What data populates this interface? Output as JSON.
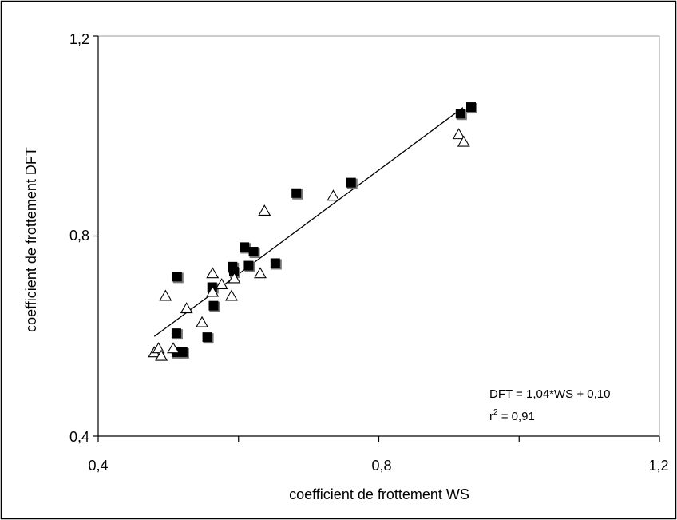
{
  "chart_data": {
    "type": "scatter",
    "title": "",
    "xlabel": "coefficient de frottement WS",
    "ylabel": "coefficient de frottement DFT",
    "xlim": [
      0.4,
      1.2
    ],
    "ylim": [
      0.4,
      1.2
    ],
    "x_ticks": [
      "0,4",
      "0,8",
      "1,2"
    ],
    "y_ticks": [
      "0,4",
      "0,8",
      "1,2"
    ],
    "grid": false,
    "series": [
      {
        "marker": "filled-square",
        "color": "#000000",
        "points": [
          [
            0.513,
            0.718
          ],
          [
            0.512,
            0.605
          ],
          [
            0.512,
            0.567
          ],
          [
            0.521,
            0.567
          ],
          [
            0.556,
            0.597
          ],
          [
            0.563,
            0.697
          ],
          [
            0.565,
            0.66
          ],
          [
            0.592,
            0.738
          ],
          [
            0.594,
            0.728
          ],
          [
            0.609,
            0.777
          ],
          [
            0.615,
            0.74
          ],
          [
            0.622,
            0.768
          ],
          [
            0.653,
            0.745
          ],
          [
            0.683,
            0.885
          ],
          [
            0.761,
            0.906
          ],
          [
            0.917,
            1.044
          ],
          [
            0.932,
            1.057
          ]
        ]
      },
      {
        "marker": "open-triangle",
        "color": "#000000",
        "points": [
          [
            0.48,
            0.567
          ],
          [
            0.486,
            0.575
          ],
          [
            0.49,
            0.56
          ],
          [
            0.496,
            0.68
          ],
          [
            0.507,
            0.575
          ],
          [
            0.526,
            0.655
          ],
          [
            0.548,
            0.627
          ],
          [
            0.563,
            0.725
          ],
          [
            0.563,
            0.688
          ],
          [
            0.576,
            0.703
          ],
          [
            0.59,
            0.68
          ],
          [
            0.594,
            0.715
          ],
          [
            0.631,
            0.725
          ],
          [
            0.637,
            0.85
          ],
          [
            0.735,
            0.88
          ],
          [
            0.914,
            1.003
          ],
          [
            0.921,
            0.988
          ]
        ]
      }
    ],
    "trendline": {
      "x_start": 0.48,
      "x_end": 0.92,
      "slope": 1.04,
      "intercept": 0.1
    },
    "annotation": {
      "equation": "DFT = 1,04*WS + 0,10",
      "r2_prefix": "r",
      "r2_superscript": "2",
      "r2_suffix": " = 0,91"
    }
  }
}
